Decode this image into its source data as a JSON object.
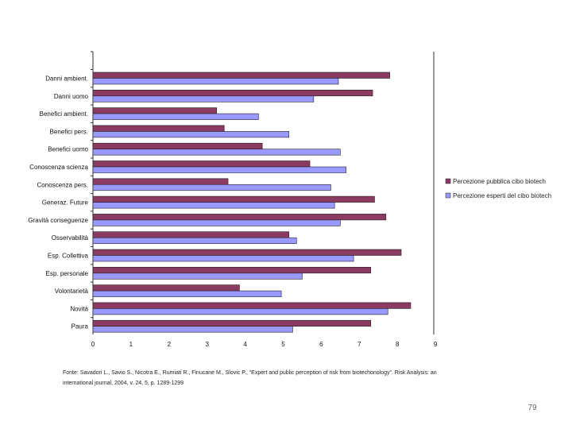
{
  "chart_data": {
    "type": "bar",
    "orientation": "horizontal",
    "categories": [
      "Danni ambient.",
      "Danni uomo",
      "Benefici ambient.",
      "Benefici pers.",
      "Benefici uomo",
      "Conoscenza scienza",
      "Conoscenza pers.",
      "Generaz. Future",
      "Gravità conseguenze",
      "Osservabilità",
      "Esp. Collettiva",
      "Esp. personale",
      "Volontarietà",
      "Novità",
      "Paura"
    ],
    "series": [
      {
        "name": "Percezione pubblica cibo biotech",
        "color": "#8b3a62",
        "values": [
          7.8,
          7.35,
          3.25,
          3.45,
          4.45,
          5.7,
          3.55,
          7.4,
          7.7,
          5.15,
          8.1,
          7.3,
          3.85,
          8.35,
          7.3
        ]
      },
      {
        "name": "Percezione esperti del cibo biotech",
        "color": "#9999ff",
        "values": [
          6.45,
          5.8,
          4.35,
          5.15,
          6.5,
          6.65,
          6.25,
          6.35,
          6.5,
          5.35,
          6.85,
          5.5,
          4.95,
          7.75,
          5.25
        ]
      }
    ],
    "xlim": [
      0,
      9
    ],
    "xticks": [
      "0",
      "1",
      "2",
      "3",
      "4",
      "5",
      "6",
      "7",
      "8",
      "9"
    ],
    "title": "",
    "xlabel": "",
    "ylabel": "",
    "legend_position": "right"
  },
  "footer": {
    "source_line1": "Fonte: Savadori L., Savio S., Nicotra E., Rumiati R., Finucane M., Slovic P., “Expert and public perception of risk from biotechonology”. Risk Analysis: an",
    "source_line2": "international journal, 2004, v. 24, 5, p. 1289-1299",
    "page_number": "79"
  }
}
